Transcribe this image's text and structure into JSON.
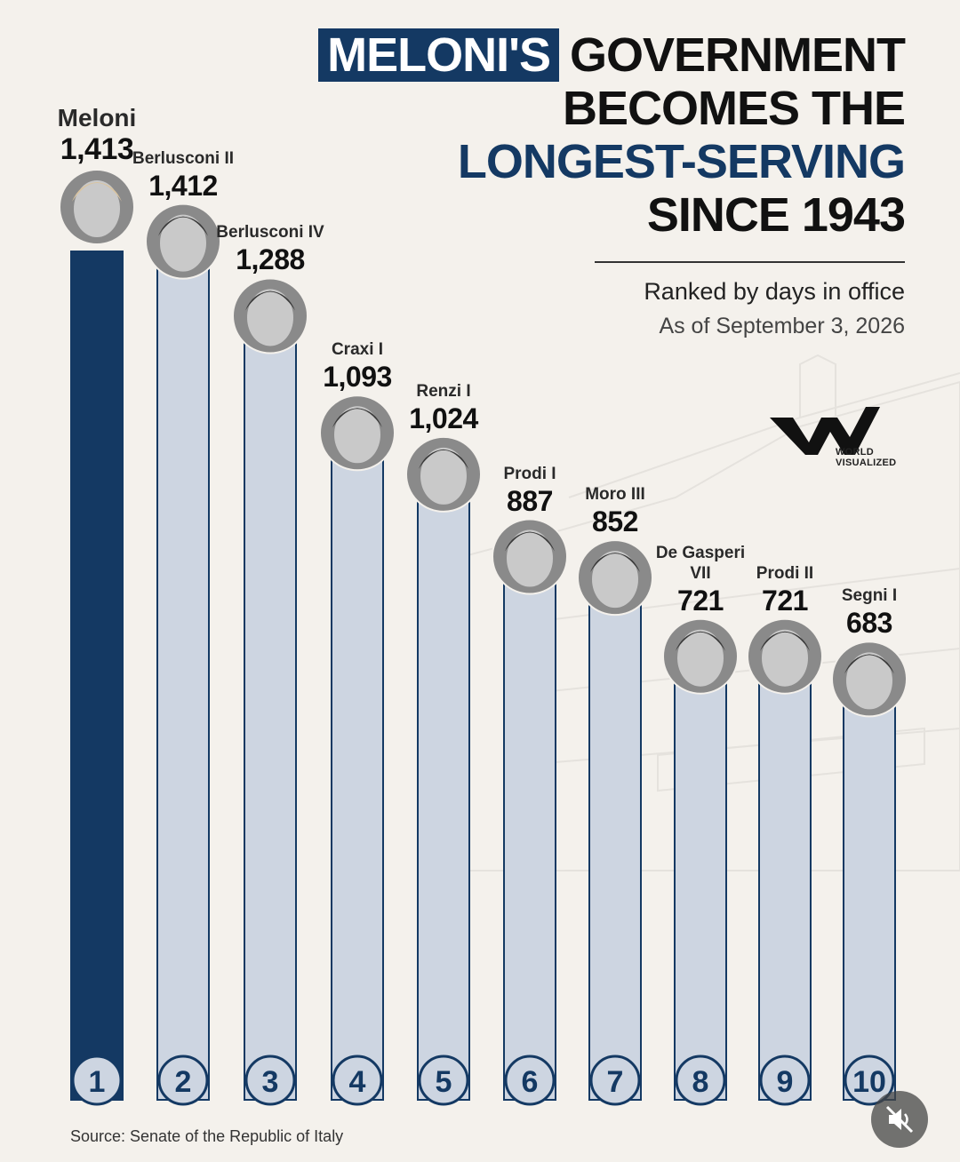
{
  "title": {
    "highlight": "MELONI'S",
    "line1_rest": "GOVERNMENT",
    "line2": "BECOMES THE",
    "line3": "LONGEST-SERVING",
    "line4": "SINCE 1943"
  },
  "subtitle": "Ranked by days in office",
  "date": "As of September 3, 2026",
  "brand": {
    "logo_icon": "world-visualized-logo-icon",
    "line1": "WORLD",
    "line2": "VISUALIZED"
  },
  "source": "Source: Senate of the Republic of Italy",
  "colors": {
    "highlight": "#143963",
    "bar_other": "#cdd5e1",
    "bar_first": "#143963",
    "background": "#f4f1ec"
  },
  "chart_data": {
    "type": "bar",
    "title": "MELONI'S GOVERNMENT BECOMES THE LONGEST-SERVING SINCE 1943",
    "subtitle": "Ranked by days in office",
    "categories": [
      "Meloni",
      "Berlusconi II",
      "Berlusconi IV",
      "Craxi I",
      "Renzi I",
      "Prodi I",
      "Moro III",
      "De Gasperi VII",
      "Prodi II",
      "Segni I"
    ],
    "name_lines": [
      [
        "Meloni"
      ],
      [
        "Berlusconi II"
      ],
      [
        "Berlusconi IV"
      ],
      [
        "Craxi I"
      ],
      [
        "Renzi I"
      ],
      [
        "Prodi I"
      ],
      [
        "Moro III"
      ],
      [
        "De Gasperi",
        "VII"
      ],
      [
        "Prodi II"
      ],
      [
        "Segni I"
      ]
    ],
    "values": [
      1413,
      1412,
      1288,
      1093,
      1024,
      887,
      852,
      721,
      721,
      683
    ],
    "value_labels": [
      "1,413",
      "1,412",
      "1,288",
      "1,093",
      "1,024",
      "887",
      "852",
      "721",
      "721",
      "683"
    ],
    "ranks": [
      "1",
      "2",
      "3",
      "4",
      "5",
      "6",
      "7",
      "8",
      "9",
      "10"
    ],
    "highlighted_index": 0,
    "xlabel": "",
    "ylabel": ""
  }
}
